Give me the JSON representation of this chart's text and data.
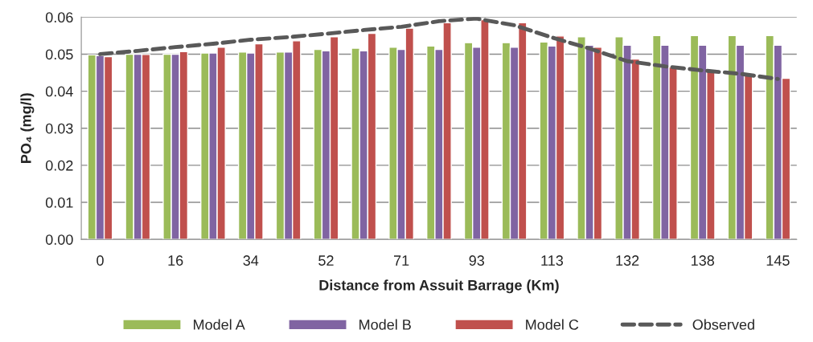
{
  "chart_data": {
    "type": "bar",
    "xlabel": "Distance from Assuit Barrage (Km)",
    "ylabel": "PO₄ (mg/l)",
    "categories": [
      "0",
      null,
      "16",
      null,
      "34",
      null,
      "52",
      null,
      "71",
      null,
      "93",
      null,
      "113",
      null,
      "132",
      null,
      "138",
      null,
      "145"
    ],
    "series": [
      {
        "name": "Model A",
        "color": "#9bbb59",
        "values": [
          0.0498,
          0.05,
          0.05,
          0.0503,
          0.0506,
          0.0506,
          0.0513,
          0.0516,
          0.0519,
          0.0522,
          0.0531,
          0.0531,
          0.0533,
          0.0547,
          0.0547,
          0.055,
          0.055,
          0.055,
          0.055
        ]
      },
      {
        "name": "Model B",
        "color": "#8064a2",
        "values": [
          0.0496,
          0.05,
          0.05,
          0.0503,
          0.0503,
          0.0506,
          0.0509,
          0.0509,
          0.0513,
          0.0513,
          0.0519,
          0.0519,
          0.0522,
          0.0524,
          0.0524,
          0.0524,
          0.0524,
          0.0524,
          0.0524
        ]
      },
      {
        "name": "Model C",
        "color": "#c0504d",
        "values": [
          0.0493,
          0.0499,
          0.0507,
          0.0519,
          0.0528,
          0.0536,
          0.0547,
          0.0556,
          0.057,
          0.0585,
          0.0593,
          0.0585,
          0.0549,
          0.0519,
          0.0487,
          0.0465,
          0.0456,
          0.0446,
          0.0435
        ]
      },
      {
        "name": "Observed",
        "color": "#595959",
        "type": "line",
        "line_style": "dashed",
        "marker": "none",
        "values": [
          0.05,
          0.0509,
          0.0519,
          0.0528,
          0.0539,
          0.0546,
          0.0555,
          0.0565,
          0.0574,
          0.0589,
          0.0596,
          0.0578,
          0.0545,
          0.0515,
          0.0481,
          0.0467,
          0.0456,
          0.0447,
          0.0433
        ]
      }
    ],
    "ylim": [
      0,
      0.06
    ],
    "yticks": [
      {
        "value": 0,
        "label": "0.00"
      },
      {
        "value": 0.01,
        "label": "0.01"
      },
      {
        "value": 0.02,
        "label": "0.02"
      },
      {
        "value": 0.03,
        "label": "0.03"
      },
      {
        "value": 0.04,
        "label": "0.04"
      },
      {
        "value": 0.05,
        "label": "0.05"
      },
      {
        "value": 0.06,
        "label": "0.06"
      }
    ],
    "grid": "y",
    "legend": "bottom"
  }
}
